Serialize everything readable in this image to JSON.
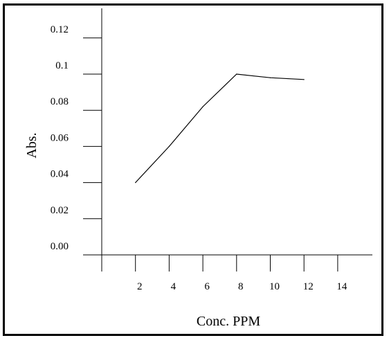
{
  "chart_data": {
    "type": "line",
    "title": "",
    "xlabel": "Conc. PPM",
    "ylabel": "Abs.",
    "x_ticks": [
      2,
      4,
      6,
      8,
      10,
      12,
      14
    ],
    "x_tick_labels": [
      "2",
      "4",
      "6",
      "8",
      "10",
      "12",
      "14"
    ],
    "y_ticks": [
      0.0,
      0.02,
      0.04,
      0.06,
      0.08,
      0.1,
      0.12
    ],
    "y_tick_labels": [
      "0.00",
      "0.02",
      "0.04",
      "0.06",
      "0.08",
      "0.1",
      "0.12"
    ],
    "xlim": [
      0,
      16
    ],
    "ylim": [
      0,
      0.13
    ],
    "grid": false,
    "series": [
      {
        "x": [
          2,
          4,
          6,
          8,
          10,
          12
        ],
        "y": [
          0.04,
          0.06,
          0.082,
          0.1,
          0.098,
          0.097
        ],
        "color": "#000000"
      }
    ]
  }
}
